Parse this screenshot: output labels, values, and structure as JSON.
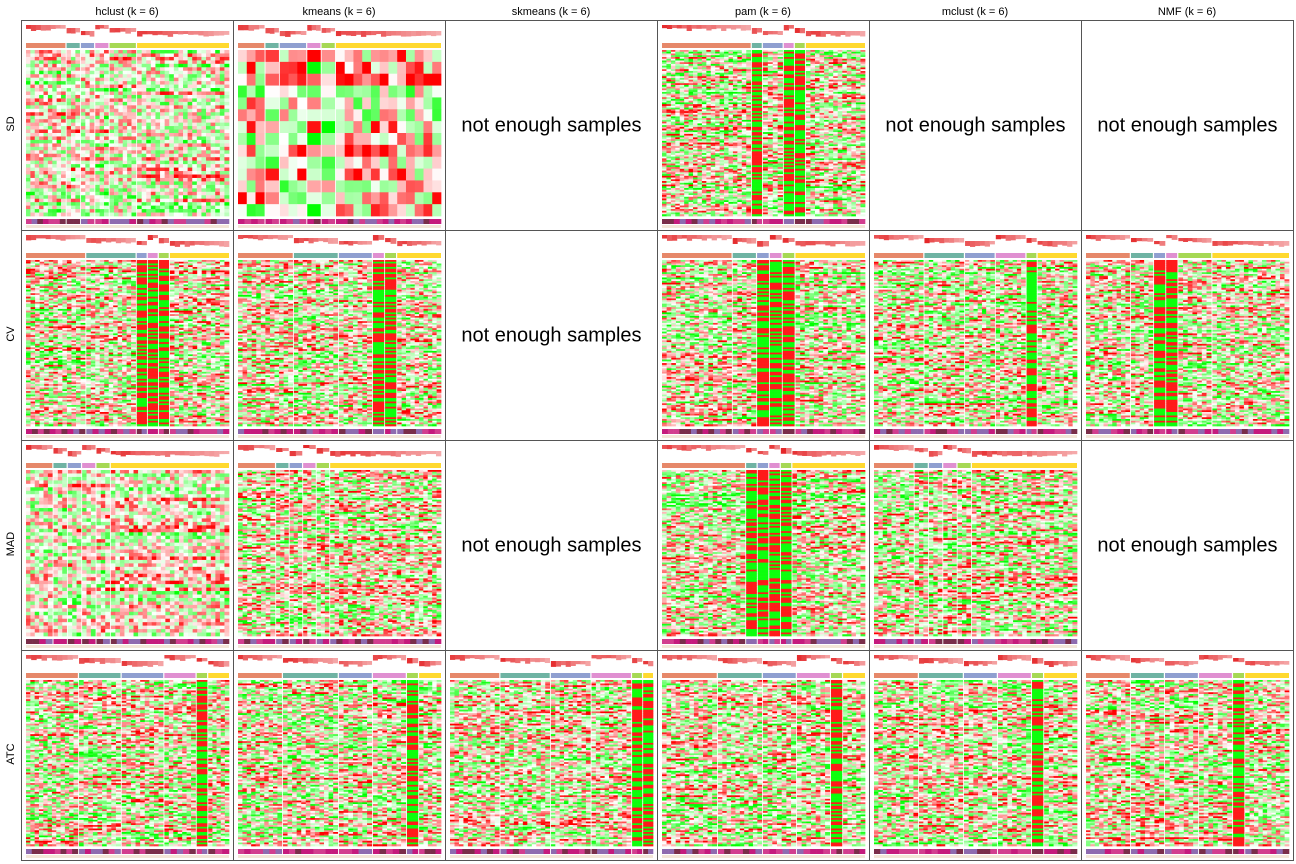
{
  "chart_data": {
    "type": "heatmap",
    "title": "",
    "methods": [
      "hclust (k = 6)",
      "kmeans (k = 6)",
      "skmeans (k = 6)",
      "pam (k = 6)",
      "mclust (k = 6)",
      "NMF (k = 6)"
    ],
    "row_methods": [
      "SD",
      "CV",
      "MAD",
      "ATC"
    ],
    "empty_message": "not enough samples",
    "panels": [
      [
        {
          "available": true,
          "groups": [
            3,
            1,
            1,
            1,
            2,
            7
          ],
          "style": "sparse"
        },
        {
          "available": true,
          "groups": [
            2,
            1,
            2,
            1,
            1,
            8
          ],
          "style": "blocky"
        },
        {
          "available": false
        },
        {
          "available": true,
          "groups": [
            9,
            1,
            2,
            1,
            1,
            6
          ],
          "style": "fine"
        },
        {
          "available": false
        },
        {
          "available": false
        }
      ],
      [
        {
          "available": true,
          "groups": [
            6,
            5,
            1,
            1,
            1,
            6
          ],
          "style": "fine"
        },
        {
          "available": true,
          "groups": [
            5,
            4,
            3,
            1,
            1,
            4
          ],
          "style": "fine"
        },
        {
          "available": false
        },
        {
          "available": true,
          "groups": [
            6,
            2,
            1,
            1,
            1,
            6
          ],
          "style": "fine"
        },
        {
          "available": true,
          "groups": [
            5,
            4,
            3,
            3,
            1,
            4
          ],
          "style": "fine"
        },
        {
          "available": true,
          "groups": [
            4,
            2,
            1,
            1,
            3,
            7
          ],
          "style": "fine"
        }
      ],
      [
        {
          "available": true,
          "groups": [
            2,
            1,
            1,
            1,
            1,
            9
          ],
          "style": "sparse"
        },
        {
          "available": true,
          "groups": [
            3,
            1,
            1,
            1,
            1,
            9
          ],
          "style": "fine"
        },
        {
          "available": false
        },
        {
          "available": true,
          "groups": [
            8,
            1,
            1,
            1,
            1,
            7
          ],
          "style": "fine"
        },
        {
          "available": true,
          "groups": [
            3,
            1,
            1,
            1,
            1,
            8
          ],
          "style": "fine"
        },
        {
          "available": false
        }
      ],
      [
        {
          "available": true,
          "groups": [
            5,
            4,
            4,
            3,
            1,
            2
          ],
          "style": "fine"
        },
        {
          "available": true,
          "groups": [
            4,
            5,
            3,
            3,
            1,
            2
          ],
          "style": "fine"
        },
        {
          "available": true,
          "groups": [
            5,
            5,
            4,
            4,
            1,
            1
          ],
          "style": "fine"
        },
        {
          "available": true,
          "groups": [
            5,
            4,
            3,
            3,
            1,
            2
          ],
          "style": "fine"
        },
        {
          "available": true,
          "groups": [
            4,
            4,
            3,
            3,
            1,
            3
          ],
          "style": "fine"
        },
        {
          "available": true,
          "groups": [
            4,
            3,
            3,
            3,
            1,
            4
          ],
          "style": "fine"
        }
      ]
    ],
    "colors": {
      "high": "#ff0000",
      "mid": "#ffffff",
      "low": "#00ff00",
      "class_palette": [
        "#e6886a",
        "#6fb3a3",
        "#8f9fd0",
        "#e08fd1",
        "#a6d854",
        "#ffd92f"
      ],
      "silhouette_low": "#ffffff",
      "silhouette_high": "#e31a1c",
      "bottom_palette": [
        "#c51b7d",
        "#8e6bb0",
        "#7a2e4a",
        "#d23e8f"
      ]
    }
  }
}
